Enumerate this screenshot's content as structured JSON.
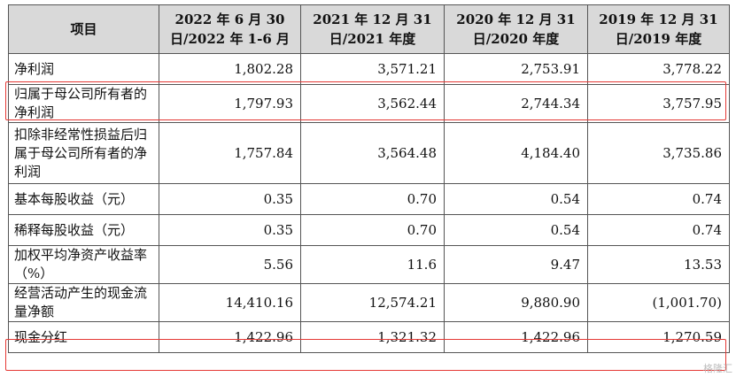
{
  "header": {
    "item": "项目",
    "col1_line1": "2022 年 6 月 30",
    "col1_line2": "日/2022 年 1-6 月",
    "col2_line1": "2021 年 12 月 31",
    "col2_line2": "日/2021 年度",
    "col3_line1": "2020 年 12 月 31",
    "col3_line2": "日/2020 年度",
    "col4_line1": "2019 年 12 月 31",
    "col4_line2": "日/2019 年度"
  },
  "rows": [
    {
      "label": "净利润",
      "v1": "1,802.28",
      "v2": "3,571.21",
      "v3": "2,753.91",
      "v4": "3,778.22"
    },
    {
      "label": "归属于母公司所有者的净利润",
      "v1": "1,797.93",
      "v2": "3,562.44",
      "v3": "2,744.34",
      "v4": "3,757.95"
    },
    {
      "label": "扣除非经常性损益后归属于母公司所有者的净利润",
      "v1": "1,757.84",
      "v2": "3,564.48",
      "v3": "4,184.40",
      "v4": "3,735.86"
    },
    {
      "label": "基本每股收益（元）",
      "v1": "0.35",
      "v2": "0.70",
      "v3": "0.54",
      "v4": "0.74"
    },
    {
      "label": "稀释每股收益（元）",
      "v1": "0.35",
      "v2": "0.70",
      "v3": "0.54",
      "v4": "0.74"
    },
    {
      "label": "加权平均净资产收益率（%）",
      "v1": "5.56",
      "v2": "11.6",
      "v3": "9.47",
      "v4": "13.53"
    },
    {
      "label": "经营活动产生的现金流量净额",
      "v1": "14,410.16",
      "v2": "12,574.21",
      "v3": "9,880.90",
      "v4": "(1,001.70)"
    },
    {
      "label": "现金分红",
      "v1": "1,422.96",
      "v2": "1,321.32",
      "v3": "1,422.96",
      "v4": "1,270.59"
    }
  ],
  "watermark": "格隆汇",
  "highlight_color": "#e53935"
}
